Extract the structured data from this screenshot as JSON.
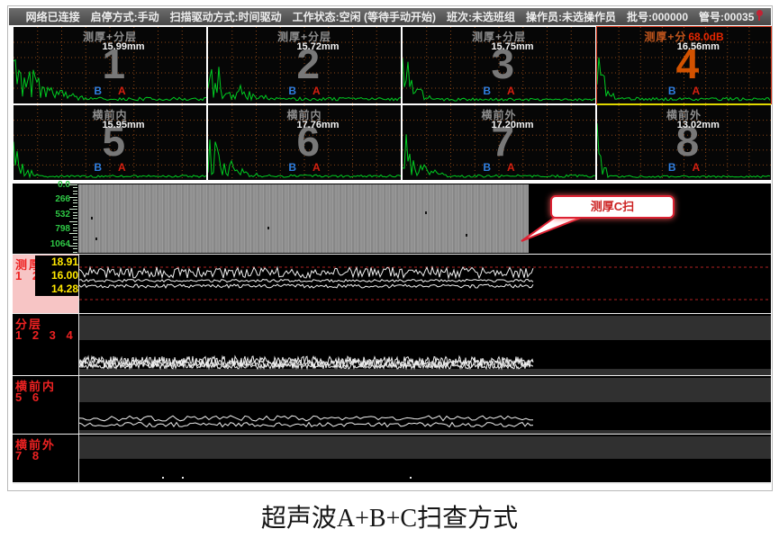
{
  "titlebar": {
    "items": [
      "网络已连接",
      "启停方式:手动",
      "扫描驱动方式:时间驱动",
      "工作状态:空闲 (等待手动开始)",
      "班次:未选班组",
      "操作员:未选操作员",
      "批号:000000",
      "管号:00035"
    ]
  },
  "ascan": {
    "panels": [
      {
        "number": "1",
        "title": "测厚+分层",
        "value": "15.99mm",
        "selected": false
      },
      {
        "number": "2",
        "title": "测厚+分层",
        "value": "15.72mm",
        "selected": false
      },
      {
        "number": "3",
        "title": "测厚+分层",
        "value": "15.75mm",
        "selected": false
      },
      {
        "number": "4",
        "title": "测厚+分",
        "gain": "68.0dB",
        "value": "16.56mm",
        "selected": true
      },
      {
        "number": "5",
        "title": "横前内",
        "value": "15.95mm",
        "selected": false
      },
      {
        "number": "6",
        "title": "横前内",
        "value": "17.76mm",
        "selected": false
      },
      {
        "number": "7",
        "title": "横前外",
        "value": "17.20mm",
        "selected": false
      },
      {
        "number": "8",
        "title": "横前外",
        "value": "13.02mm",
        "selected": false
      }
    ],
    "gate_b_label": "B",
    "gate_a_label": "A"
  },
  "cscan": {
    "axis_labels": [
      "0.0",
      "266",
      "532",
      "798",
      "1064"
    ],
    "callout_label": "测厚C扫",
    "indications": [
      [
        0.028,
        0.48
      ],
      [
        0.038,
        0.78
      ],
      [
        0.42,
        0.62
      ],
      [
        0.77,
        0.4
      ],
      [
        0.86,
        0.72
      ]
    ]
  },
  "strips": [
    {
      "label": "测厚",
      "channels": "1 2 3",
      "values": [
        "18.91",
        "16.00",
        "14.28"
      ]
    },
    {
      "label": "分层",
      "channels": "1 2 3 4",
      "values": []
    },
    {
      "label": "横前内",
      "channels": "5 6",
      "values": []
    },
    {
      "label": "横前外",
      "channels": "7 8",
      "values": []
    }
  ],
  "caption": "超声波A+B+C扫查方式",
  "colors": {
    "wave_green": "#00cc22",
    "alarm_red": "#b22222",
    "selected_orange": "#d25200",
    "axis_green": "#2ec845",
    "label_red": "#ee2222",
    "label_pink": "#f7c5c5",
    "value_yellow": "#ffe800"
  }
}
